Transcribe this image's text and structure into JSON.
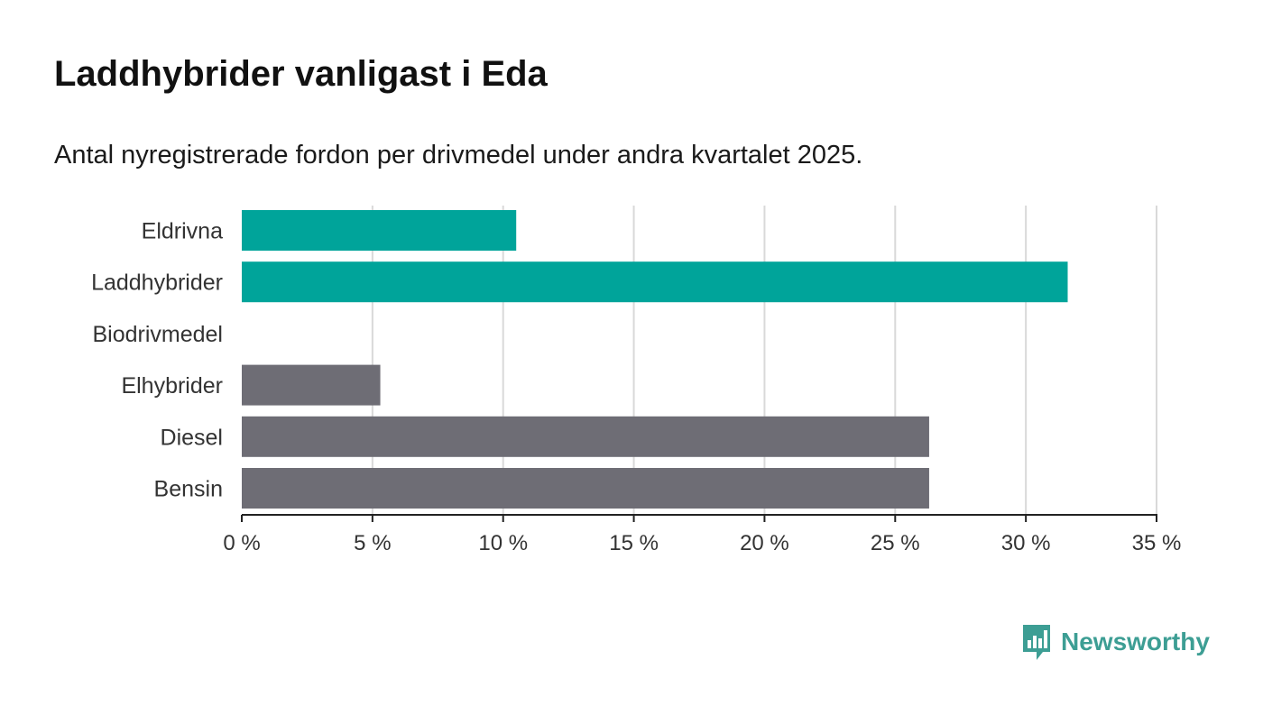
{
  "chart_data": {
    "type": "bar",
    "orientation": "horizontal",
    "title": "Laddhybrider vanligast i Eda",
    "subtitle": "Antal nyregistrerade fordon per drivmedel under andra kvartalet 2025.",
    "categories": [
      "Eldrivna",
      "Laddhybrider",
      "Biodrivmedel",
      "Elhybrider",
      "Diesel",
      "Bensin"
    ],
    "values": [
      10.5,
      31.6,
      0,
      5.3,
      26.3,
      26.3
    ],
    "bar_colors": [
      "#00a49a",
      "#00a49a",
      "#6e6d75",
      "#6e6d75",
      "#6e6d75",
      "#6e6d75"
    ],
    "xlim": [
      0,
      35
    ],
    "xticks": [
      0,
      5,
      10,
      15,
      20,
      25,
      30,
      35
    ],
    "tick_labels": [
      "0 %",
      "5 %",
      "10 %",
      "15 %",
      "20 %",
      "25 %",
      "30 %",
      "35 %"
    ],
    "grid": true,
    "legend": "none"
  },
  "brand": {
    "name": "Newsworthy",
    "color": "#3d9e94"
  }
}
